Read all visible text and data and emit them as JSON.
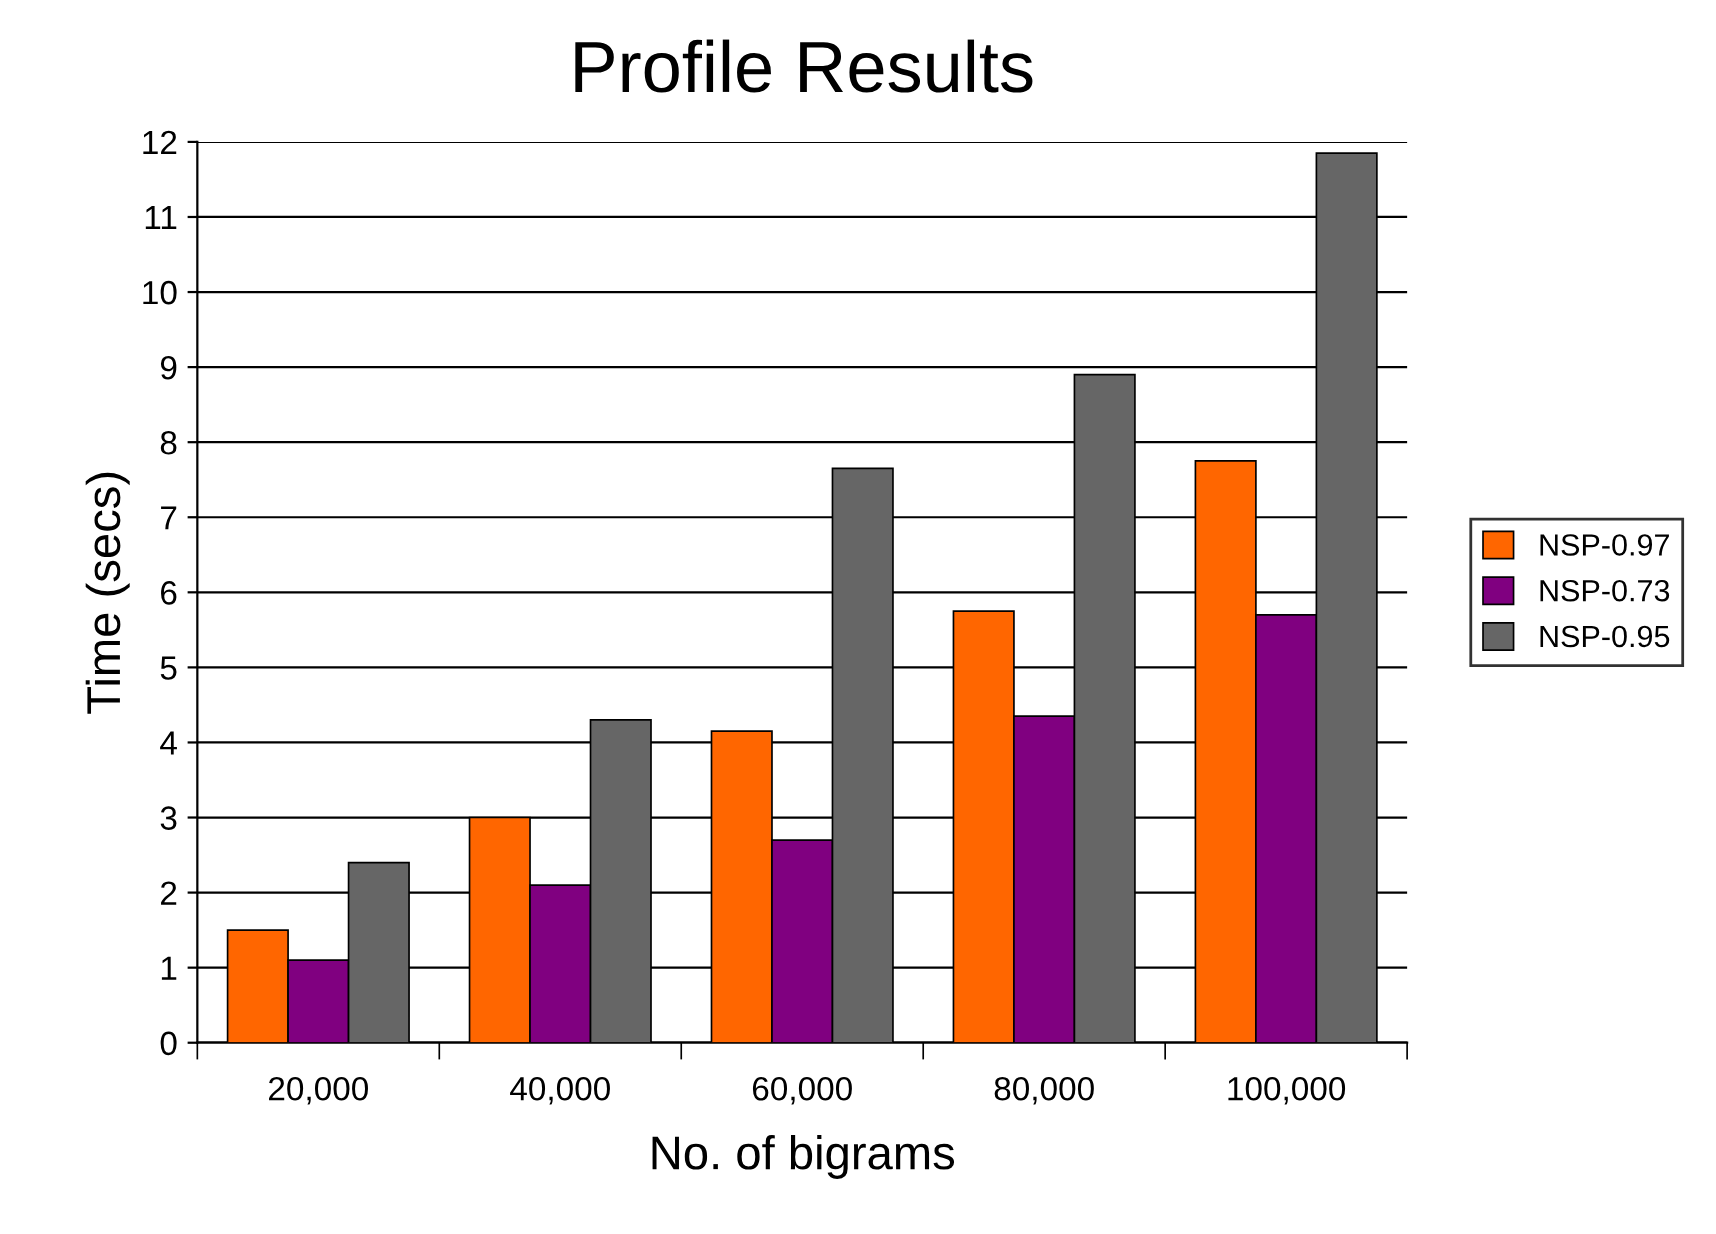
{
  "chart_data": {
    "type": "bar",
    "title": "Profile Results",
    "xlabel": "No. of bigrams",
    "ylabel": "Time (secs)",
    "categories": [
      "20,000",
      "40,000",
      "60,000",
      "80,000",
      "100,000"
    ],
    "series": [
      {
        "name": "NSP-0.97",
        "color": "#ff6600",
        "values": [
          1.5,
          3.0,
          4.15,
          5.75,
          7.75
        ]
      },
      {
        "name": "NSP-0.73",
        "color": "#800080",
        "values": [
          1.1,
          2.1,
          2.7,
          4.35,
          5.7
        ]
      },
      {
        "name": "NSP-0.95",
        "color": "#666666",
        "values": [
          2.4,
          4.3,
          7.65,
          8.9,
          11.85
        ]
      }
    ],
    "ylim": [
      0,
      12
    ],
    "yticks": [
      0,
      1,
      2,
      3,
      4,
      5,
      6,
      7,
      8,
      9,
      10,
      11,
      12
    ],
    "grid": "y",
    "legend": "right"
  }
}
